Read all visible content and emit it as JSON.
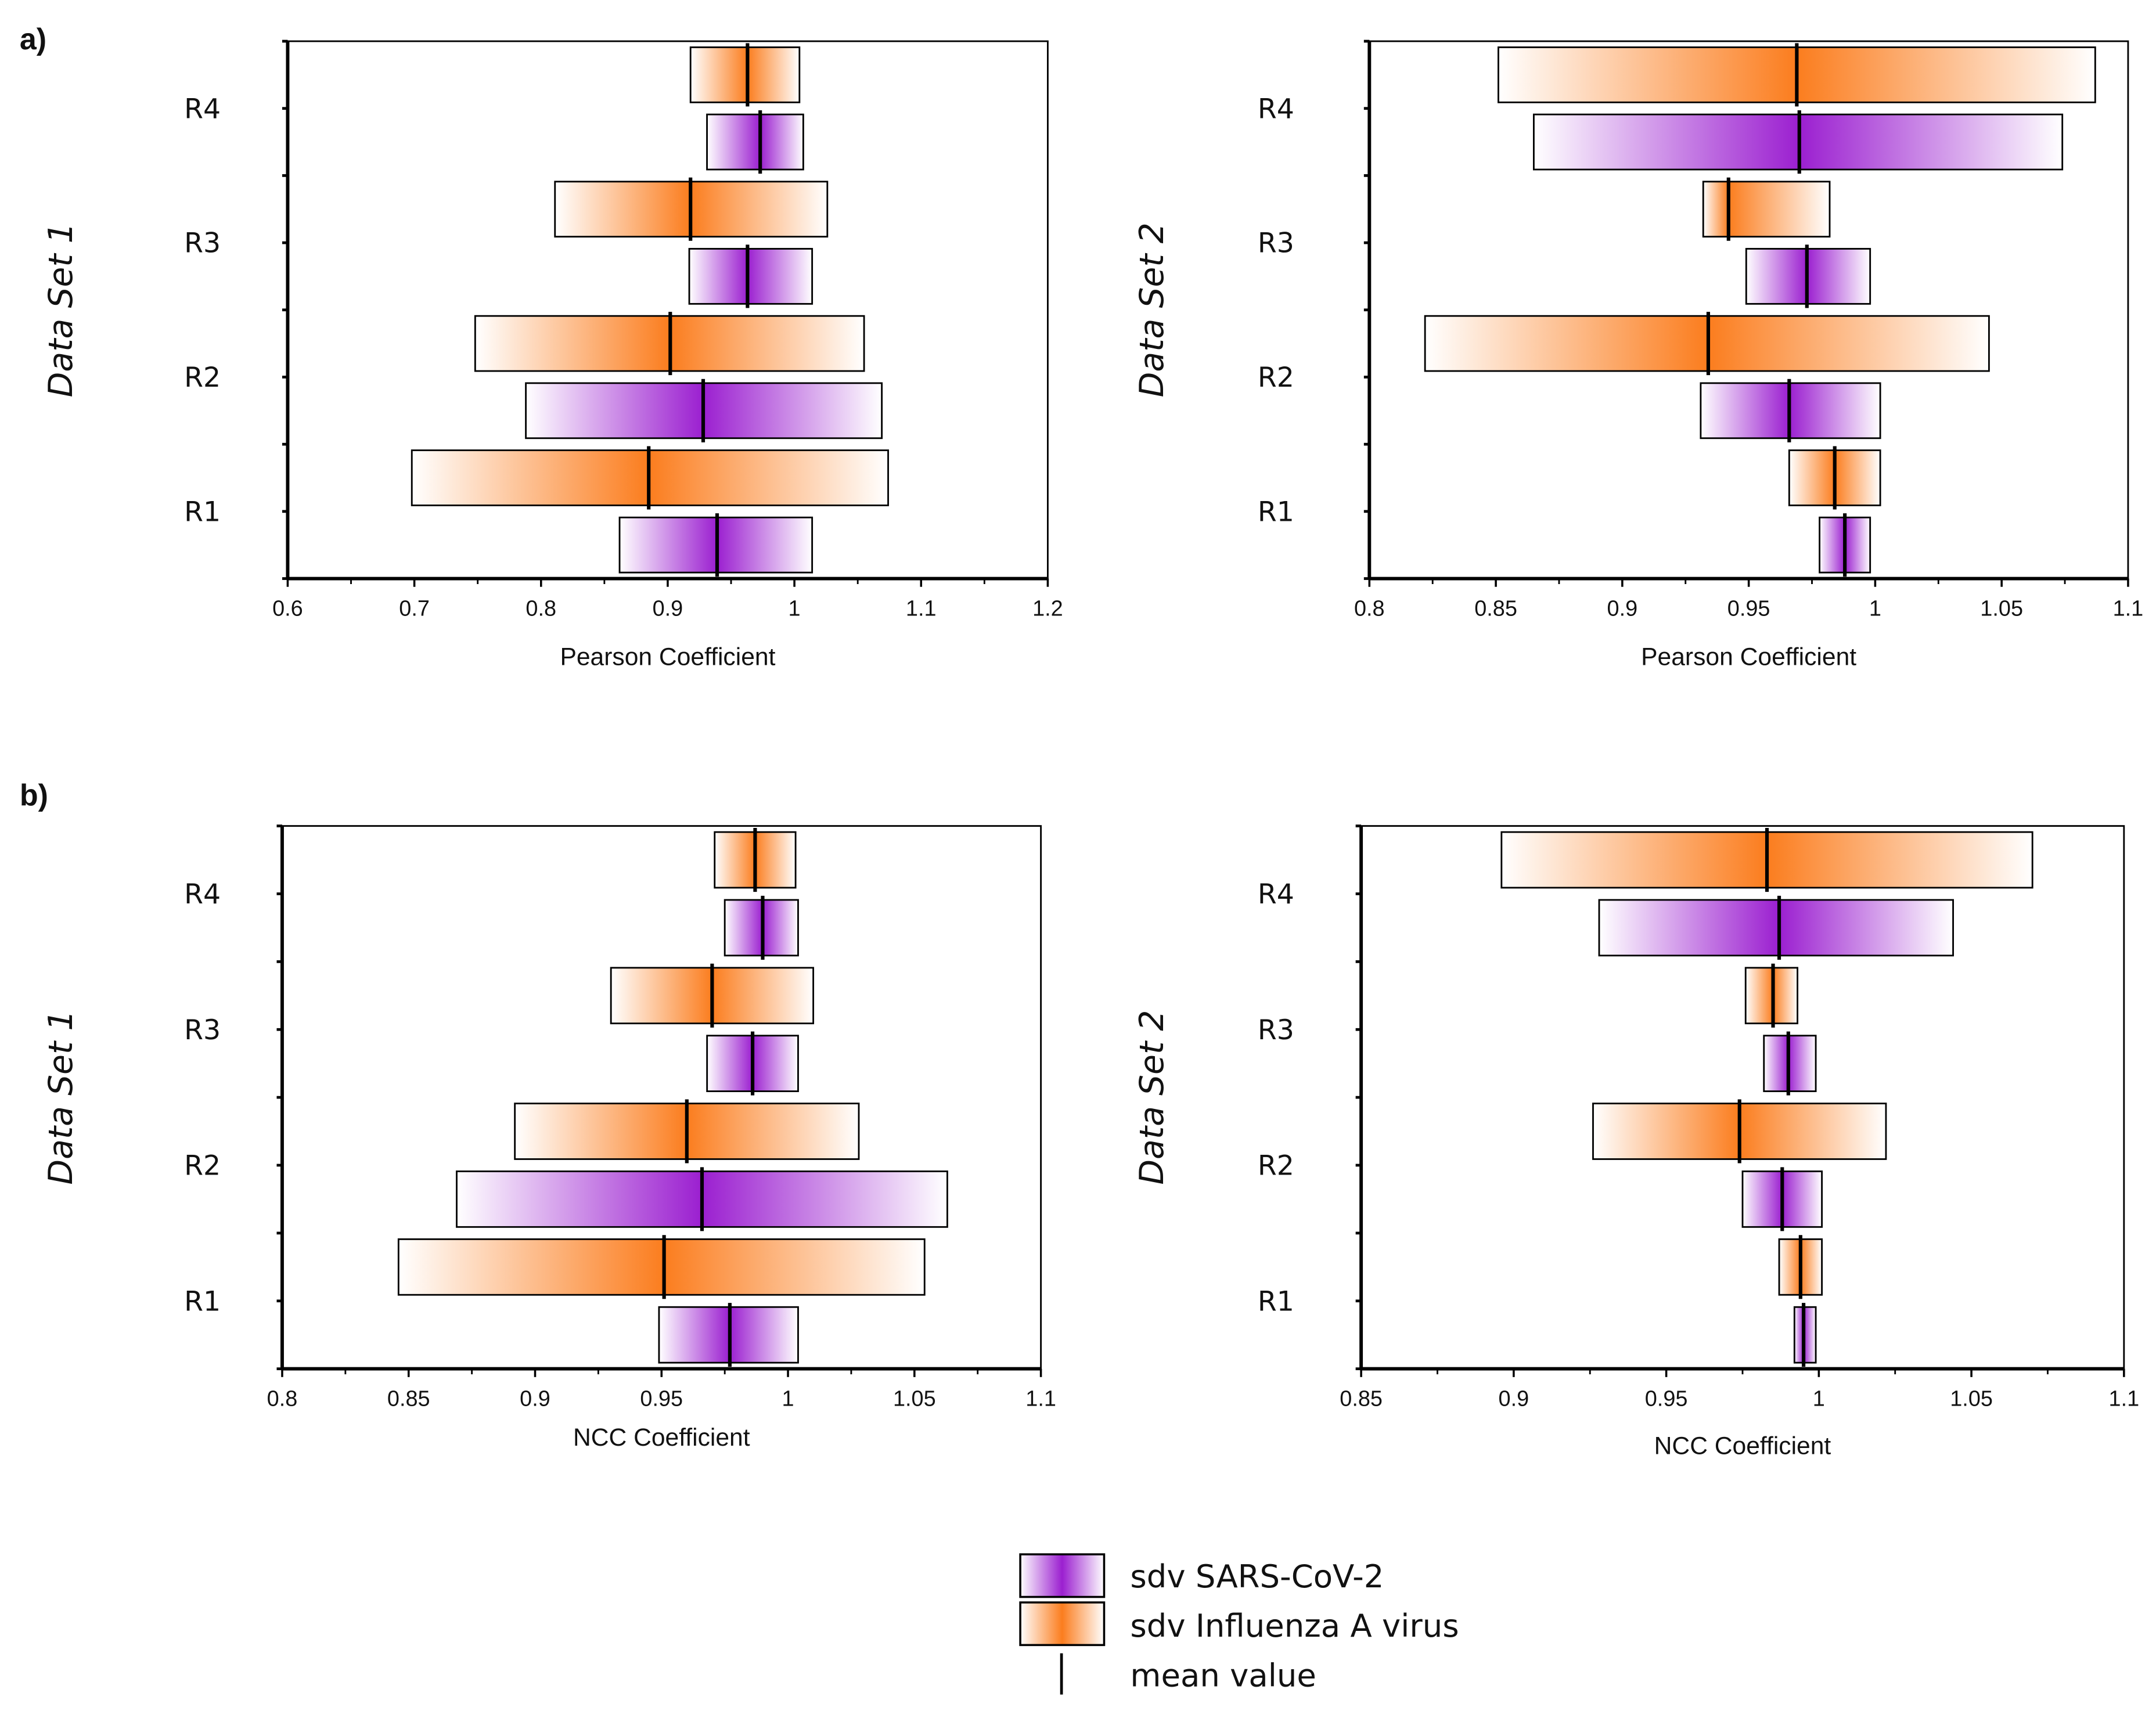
{
  "panel_labels": [
    "a)",
    "b)"
  ],
  "legend": {
    "sars": "sdv SARS-CoV-2",
    "flu": "sdv Influenza A virus",
    "mean": "mean value"
  },
  "colors": {
    "sars": "#9b1fd0",
    "flu": "#fb7d1e",
    "mean": "#000000"
  },
  "chart_data": [
    {
      "type": "bar",
      "panel": "a",
      "ylabel": "Data Set 1",
      "xlabel": "Pearson Coefficient",
      "xlim": [
        0.6,
        1.2
      ],
      "xticks": [
        "0.6",
        "0.7",
        "0.8",
        "0.9",
        "1",
        "1.1",
        "1.2"
      ],
      "categories": [
        "R4",
        "R3",
        "R2",
        "R1"
      ],
      "series": [
        {
          "name": "sdv Influenza A virus",
          "low": [
            0.918,
            0.811,
            0.748,
            0.698
          ],
          "high": [
            1.004,
            1.026,
            1.055,
            1.074
          ],
          "mean": [
            0.963,
            0.918,
            0.902,
            0.885
          ]
        },
        {
          "name": "sdv SARS-CoV-2",
          "low": [
            0.931,
            0.917,
            0.788,
            0.862
          ],
          "high": [
            1.007,
            1.014,
            1.069,
            1.014
          ],
          "mean": [
            0.973,
            0.963,
            0.928,
            0.939
          ]
        }
      ]
    },
    {
      "type": "bar",
      "panel": "a",
      "ylabel": "Data Set 2",
      "xlabel": "Pearson Coefficient",
      "xlim": [
        0.8,
        1.1
      ],
      "xticks": [
        "0.8",
        "0.85",
        "0.9",
        "0.95",
        "1",
        "1.05",
        "1.1"
      ],
      "categories": [
        "R4",
        "R3",
        "R2",
        "R1"
      ],
      "series": [
        {
          "name": "sdv Influenza A virus",
          "low": [
            0.851,
            0.932,
            0.822,
            0.966
          ],
          "high": [
            1.087,
            0.982,
            1.045,
            1.002
          ],
          "mean": [
            0.969,
            0.942,
            0.934,
            0.984
          ]
        },
        {
          "name": "sdv SARS-CoV-2",
          "low": [
            0.865,
            0.949,
            0.931,
            0.978
          ],
          "high": [
            1.074,
            0.998,
            1.002,
            0.998
          ],
          "mean": [
            0.97,
            0.973,
            0.966,
            0.988
          ]
        }
      ]
    },
    {
      "type": "bar",
      "panel": "b",
      "ylabel": "Data Set 1",
      "xlabel": "NCC Coefficient",
      "xlim": [
        0.8,
        1.1
      ],
      "xticks": [
        "0.8",
        "0.85",
        "0.9",
        "0.95",
        "1",
        "1.05",
        "1.1"
      ],
      "categories": [
        "R4",
        "R3",
        "R2",
        "R1"
      ],
      "series": [
        {
          "name": "sdv Influenza A virus",
          "low": [
            0.971,
            0.93,
            0.892,
            0.846
          ],
          "high": [
            1.003,
            1.01,
            1.028,
            1.054
          ],
          "mean": [
            0.987,
            0.97,
            0.96,
            0.951
          ]
        },
        {
          "name": "sdv SARS-CoV-2",
          "low": [
            0.975,
            0.968,
            0.869,
            0.949
          ],
          "high": [
            1.004,
            1.004,
            1.063,
            1.004
          ],
          "mean": [
            0.99,
            0.986,
            0.966,
            0.977
          ]
        }
      ]
    },
    {
      "type": "bar",
      "panel": "b",
      "ylabel": "Data Set 2",
      "xlabel": "NCC Coefficient",
      "xlim": [
        0.85,
        1.1
      ],
      "xticks": [
        "0.85",
        "0.9",
        "0.95",
        "1",
        "1.05",
        "1.1"
      ],
      "categories": [
        "R4",
        "R3",
        "R2",
        "R1"
      ],
      "series": [
        {
          "name": "sdv Influenza A virus",
          "low": [
            0.896,
            0.976,
            0.926,
            0.987
          ],
          "high": [
            1.07,
            0.993,
            1.022,
            1.001
          ],
          "mean": [
            0.983,
            0.985,
            0.974,
            0.994
          ]
        },
        {
          "name": "sdv SARS-CoV-2",
          "low": [
            0.928,
            0.982,
            0.975,
            0.992
          ],
          "high": [
            1.044,
            0.999,
            1.001,
            0.999
          ],
          "mean": [
            0.987,
            0.99,
            0.988,
            0.995
          ]
        }
      ]
    }
  ]
}
